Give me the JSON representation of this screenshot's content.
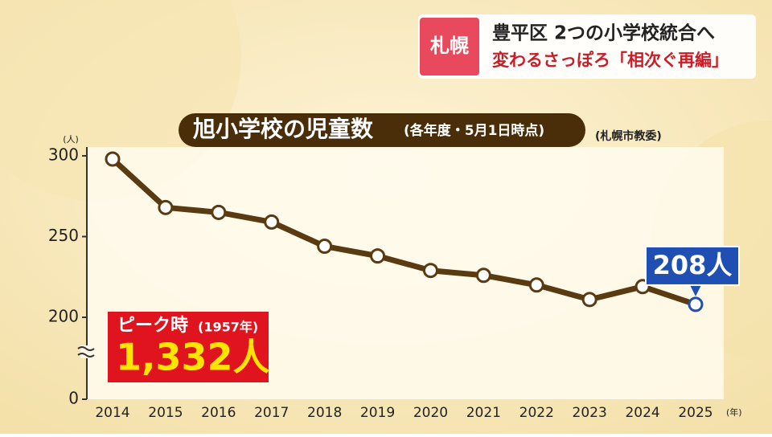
{
  "header": {
    "badge": "札幌",
    "title": "豊平区 2つの小学校統合へ",
    "subtitle": "変わるさっぽろ「相次ぐ再編」"
  },
  "chart_data": {
    "type": "line",
    "title": "旭小学校の児童数",
    "subtitle": "(各年度・5月1日時点)",
    "source": "(札幌市教委)",
    "y_unit": "(人)",
    "x_unit": "(年)",
    "categories": [
      "2014",
      "2015",
      "2016",
      "2017",
      "2018",
      "2019",
      "2020",
      "2021",
      "2022",
      "2023",
      "2024",
      "2025"
    ],
    "series": [
      {
        "name": "児童数",
        "color": "#5a3a10",
        "values": [
          298,
          268,
          265,
          259,
          244,
          238,
          229,
          226,
          220,
          211,
          219,
          208
        ]
      }
    ],
    "end_label": "208人",
    "peak": {
      "label": "ピーク時",
      "year": "(1957年)",
      "value": 1332,
      "value_label": "1,332人"
    },
    "ylim": [
      200,
      300
    ],
    "yticks": [
      0,
      200,
      250,
      300
    ],
    "axis_break": true
  }
}
